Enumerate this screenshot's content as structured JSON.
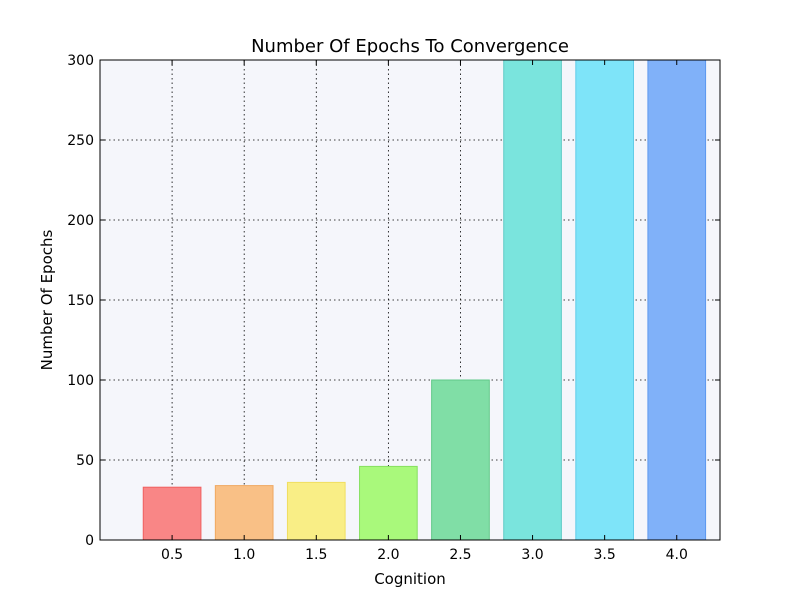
{
  "chart_data": {
    "type": "bar",
    "title": "Number Of Epochs To Convergence",
    "xlabel": "Cognition",
    "ylabel": "Number Of Epochs",
    "categories": [
      "0.5",
      "1.0",
      "1.5",
      "2.0",
      "2.5",
      "3.0",
      "3.5",
      "4.0"
    ],
    "values": [
      33,
      34,
      36,
      46,
      100,
      300,
      300,
      300
    ],
    "colors": [
      "#f98686",
      "#f9c086",
      "#f9ee86",
      "#a9f97b",
      "#80dea6",
      "#7ae4dd",
      "#7ee4f9",
      "#80b1f9"
    ],
    "edge_colors": [
      "#f06060",
      "#f0a860",
      "#f0de60",
      "#86e060",
      "#60c888",
      "#60ccc6",
      "#60cce8",
      "#5c98f0"
    ],
    "plot_background": "#f5f6fb",
    "yticks": [
      "0",
      "50",
      "100",
      "150",
      "200",
      "250",
      "300"
    ],
    "ylim": [
      0,
      300
    ],
    "grid": true
  }
}
